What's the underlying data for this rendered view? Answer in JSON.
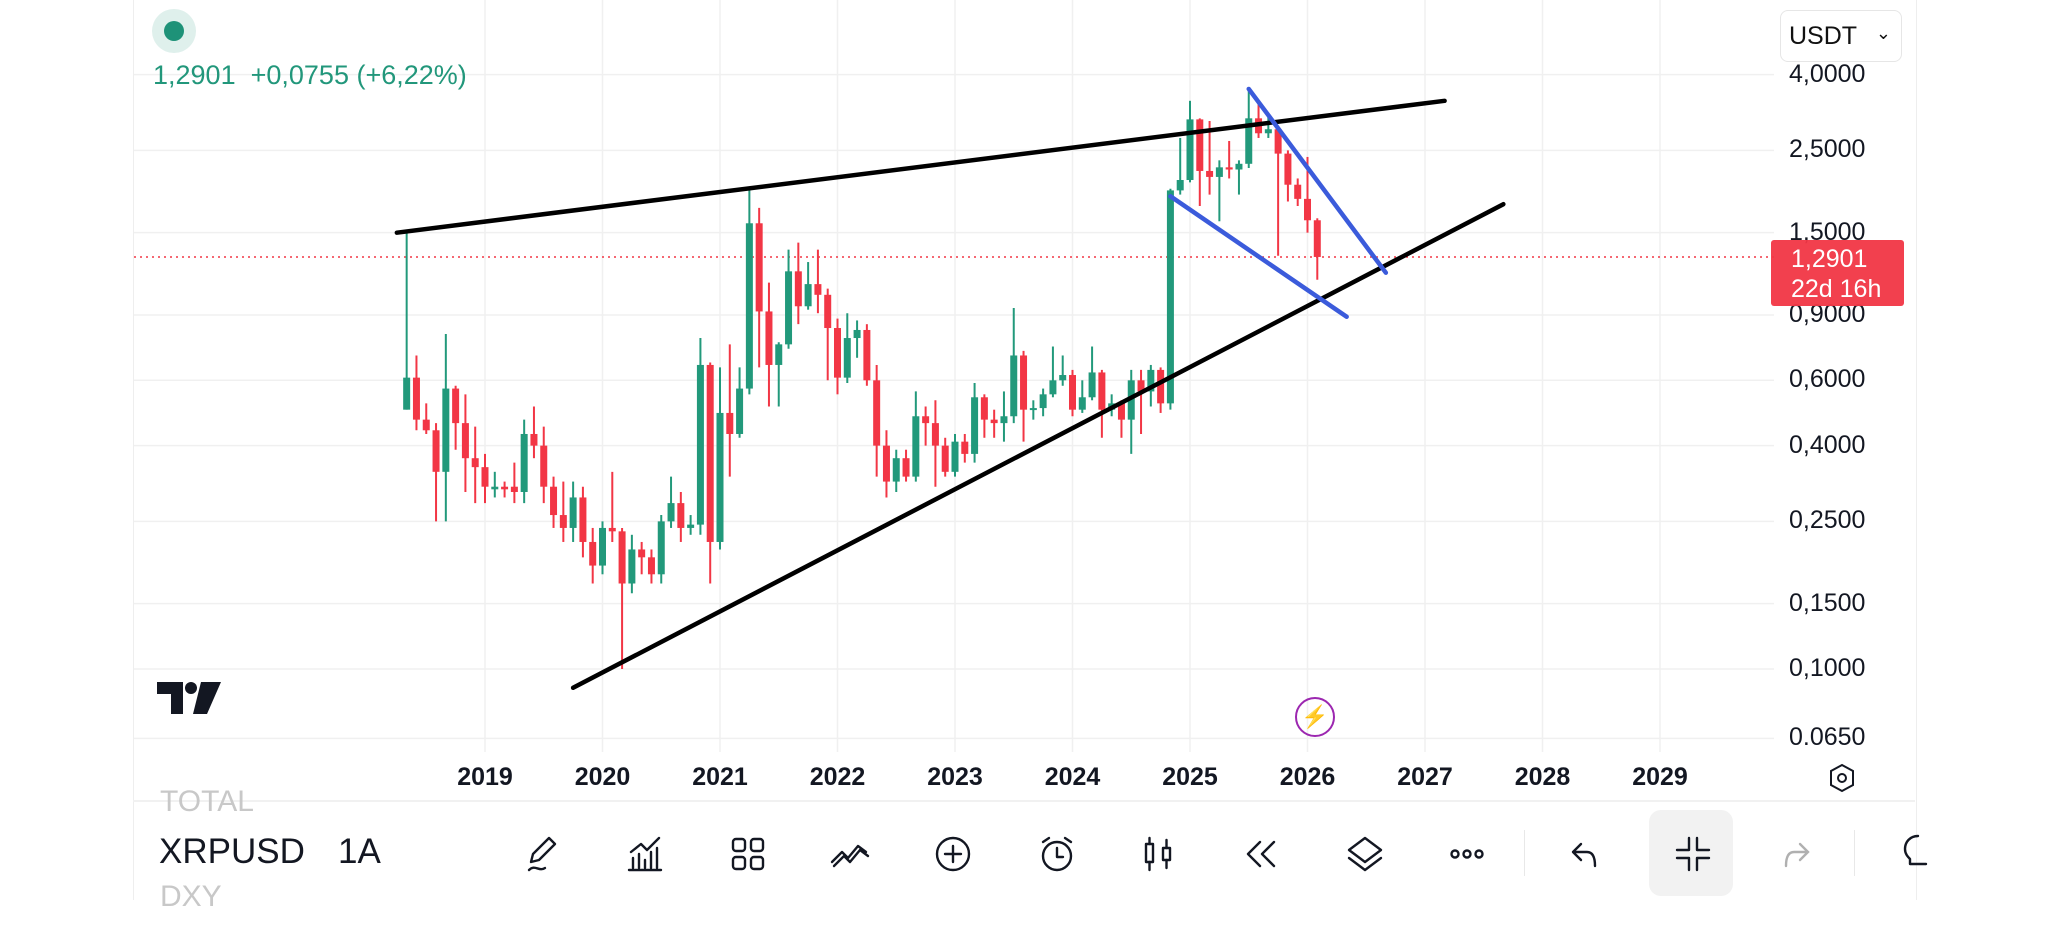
{
  "header": {
    "price": "1,2901",
    "change": "+0,0755",
    "change_pct": "(+6,22%)",
    "status_color": "#1e9278"
  },
  "currency_select": {
    "value": "USDT"
  },
  "last_price_label": {
    "price": "1,2901",
    "countdown": "22d 16h",
    "color": "#f23645"
  },
  "price_axis": {
    "ticks": [
      "4,0000",
      "2,5000",
      "1,5000",
      "0,9000",
      "0,6000",
      "0,4000",
      "0,2500",
      "0,1500",
      "0,1000",
      "0.0650"
    ],
    "tick_values": [
      4,
      2.5,
      1.5,
      0.9,
      0.6,
      0.4,
      0.25,
      0.15,
      0.1,
      0.065
    ],
    "scale": "log"
  },
  "time_axis": {
    "ticks": [
      "2019",
      "2020",
      "2021",
      "2022",
      "2023",
      "2024",
      "2025",
      "2026",
      "2027",
      "2028",
      "2029"
    ]
  },
  "bottom_bar": {
    "symbol": "XRPUSD",
    "interval": "1A",
    "watch_above": "TOTAL",
    "watch_below": "DXY"
  },
  "toolbar": [
    "pen-icon",
    "indicators-icon",
    "layout-icon",
    "drawing-tools-icon",
    "add-icon",
    "alert-icon",
    "candles-icon",
    "replay-icon",
    "layers-icon",
    "more-icon",
    "undo-icon",
    "collapse-icon",
    "redo-icon",
    "idea-icon"
  ],
  "chart_data": {
    "type": "candlestick",
    "symbol": "XRPUSD",
    "interval": "1M",
    "up_color": "#22997b",
    "down_color": "#f23645",
    "current_price": 1.2901,
    "ylim": [
      0.06,
      4.6
    ],
    "xlim": [
      "2018-01",
      "2029-12"
    ],
    "candles": [
      [
        "2018-05",
        0.5,
        1.5,
        0.5,
        0.61
      ],
      [
        "2018-06",
        0.61,
        0.7,
        0.44,
        0.47
      ],
      [
        "2018-07",
        0.47,
        0.52,
        0.43,
        0.44
      ],
      [
        "2018-08",
        0.44,
        0.46,
        0.25,
        0.34
      ],
      [
        "2018-09",
        0.34,
        0.8,
        0.25,
        0.57
      ],
      [
        "2018-10",
        0.57,
        0.58,
        0.39,
        0.46
      ],
      [
        "2018-11",
        0.46,
        0.55,
        0.3,
        0.37
      ],
      [
        "2018-12",
        0.37,
        0.45,
        0.28,
        0.35
      ],
      [
        "2019-01",
        0.35,
        0.38,
        0.28,
        0.31
      ],
      [
        "2019-02",
        0.305,
        0.34,
        0.29,
        0.31
      ],
      [
        "2019-03",
        0.31,
        0.32,
        0.29,
        0.305
      ],
      [
        "2019-04",
        0.31,
        0.36,
        0.28,
        0.3
      ],
      [
        "2019-05",
        0.3,
        0.47,
        0.28,
        0.43
      ],
      [
        "2019-06",
        0.43,
        0.51,
        0.37,
        0.4
      ],
      [
        "2019-07",
        0.4,
        0.45,
        0.28,
        0.31
      ],
      [
        "2019-08",
        0.31,
        0.33,
        0.24,
        0.26
      ],
      [
        "2019-09",
        0.26,
        0.32,
        0.22,
        0.24
      ],
      [
        "2019-10",
        0.24,
        0.32,
        0.22,
        0.29
      ],
      [
        "2019-11",
        0.29,
        0.31,
        0.2,
        0.22
      ],
      [
        "2019-12",
        0.22,
        0.24,
        0.17,
        0.19
      ],
      [
        "2020-01",
        0.19,
        0.25,
        0.18,
        0.24
      ],
      [
        "2020-02",
        0.24,
        0.34,
        0.22,
        0.235
      ],
      [
        "2020-03",
        0.235,
        0.24,
        0.1,
        0.17
      ],
      [
        "2020-04",
        0.17,
        0.23,
        0.16,
        0.21
      ],
      [
        "2020-05",
        0.21,
        0.22,
        0.18,
        0.2
      ],
      [
        "2020-06",
        0.2,
        0.21,
        0.17,
        0.18
      ],
      [
        "2020-07",
        0.18,
        0.26,
        0.17,
        0.25
      ],
      [
        "2020-08",
        0.25,
        0.33,
        0.24,
        0.28
      ],
      [
        "2020-09",
        0.28,
        0.3,
        0.22,
        0.24
      ],
      [
        "2020-10",
        0.24,
        0.26,
        0.23,
        0.245
      ],
      [
        "2020-11",
        0.245,
        0.78,
        0.23,
        0.66
      ],
      [
        "2020-12",
        0.66,
        0.67,
        0.17,
        0.22
      ],
      [
        "2021-01",
        0.22,
        0.65,
        0.21,
        0.49
      ],
      [
        "2021-02",
        0.49,
        0.75,
        0.33,
        0.43
      ],
      [
        "2021-03",
        0.43,
        0.65,
        0.42,
        0.57
      ],
      [
        "2021-04",
        0.57,
        1.96,
        0.55,
        1.59
      ],
      [
        "2021-05",
        1.59,
        1.75,
        0.65,
        0.92
      ],
      [
        "2021-06",
        0.92,
        1.1,
        0.51,
        0.66
      ],
      [
        "2021-07",
        0.66,
        0.76,
        0.51,
        0.75
      ],
      [
        "2021-08",
        0.75,
        1.35,
        0.73,
        1.18
      ],
      [
        "2021-09",
        1.18,
        1.41,
        0.85,
        0.95
      ],
      [
        "2021-10",
        0.95,
        1.25,
        0.93,
        1.09
      ],
      [
        "2021-11",
        1.09,
        1.35,
        0.91,
        1.02
      ],
      [
        "2021-12",
        1.02,
        1.06,
        0.6,
        0.83
      ],
      [
        "2022-01",
        0.83,
        0.88,
        0.55,
        0.61
      ],
      [
        "2022-02",
        0.61,
        0.91,
        0.59,
        0.78
      ],
      [
        "2022-03",
        0.78,
        0.87,
        0.69,
        0.82
      ],
      [
        "2022-04",
        0.82,
        0.85,
        0.58,
        0.6
      ],
      [
        "2022-05",
        0.6,
        0.66,
        0.33,
        0.4
      ],
      [
        "2022-06",
        0.4,
        0.44,
        0.29,
        0.32
      ],
      [
        "2022-07",
        0.32,
        0.39,
        0.3,
        0.37
      ],
      [
        "2022-08",
        0.37,
        0.39,
        0.32,
        0.33
      ],
      [
        "2022-09",
        0.33,
        0.56,
        0.32,
        0.48
      ],
      [
        "2022-10",
        0.48,
        0.51,
        0.4,
        0.46
      ],
      [
        "2022-11",
        0.46,
        0.53,
        0.31,
        0.4
      ],
      [
        "2022-12",
        0.4,
        0.42,
        0.33,
        0.34
      ],
      [
        "2023-01",
        0.34,
        0.43,
        0.33,
        0.41
      ],
      [
        "2023-02",
        0.41,
        0.43,
        0.36,
        0.38
      ],
      [
        "2023-03",
        0.38,
        0.59,
        0.36,
        0.54
      ],
      [
        "2023-04",
        0.54,
        0.55,
        0.42,
        0.47
      ],
      [
        "2023-05",
        0.47,
        0.5,
        0.42,
        0.46
      ],
      [
        "2023-06",
        0.46,
        0.56,
        0.41,
        0.48
      ],
      [
        "2023-07",
        0.48,
        0.94,
        0.46,
        0.7
      ],
      [
        "2023-08",
        0.7,
        0.72,
        0.41,
        0.5
      ],
      [
        "2023-09",
        0.5,
        0.53,
        0.47,
        0.505
      ],
      [
        "2023-10",
        0.505,
        0.57,
        0.48,
        0.55
      ],
      [
        "2023-11",
        0.55,
        0.74,
        0.54,
        0.6
      ],
      [
        "2023-12",
        0.6,
        0.7,
        0.58,
        0.62
      ],
      [
        "2024-01",
        0.62,
        0.64,
        0.48,
        0.5
      ],
      [
        "2024-02",
        0.5,
        0.6,
        0.49,
        0.54
      ],
      [
        "2024-03",
        0.54,
        0.74,
        0.53,
        0.63
      ],
      [
        "2024-04",
        0.63,
        0.64,
        0.42,
        0.5
      ],
      [
        "2024-05",
        0.5,
        0.55,
        0.48,
        0.52
      ],
      [
        "2024-06",
        0.52,
        0.53,
        0.42,
        0.47
      ],
      [
        "2024-07",
        0.47,
        0.64,
        0.38,
        0.6
      ],
      [
        "2024-08",
        0.6,
        0.64,
        0.43,
        0.56
      ],
      [
        "2024-09",
        0.56,
        0.66,
        0.51,
        0.64
      ],
      [
        "2024-10",
        0.64,
        0.65,
        0.49,
        0.52
      ],
      [
        "2024-11",
        0.52,
        1.97,
        0.5,
        1.95
      ],
      [
        "2024-12",
        1.95,
        2.7,
        1.9,
        2.08
      ],
      [
        "2025-01",
        2.08,
        3.4,
        2.05,
        3.03
      ],
      [
        "2025-02",
        3.03,
        3.05,
        1.77,
        2.2
      ],
      [
        "2025-03",
        2.2,
        3.0,
        1.9,
        2.12
      ],
      [
        "2025-04",
        2.12,
        2.35,
        1.61,
        2.25
      ],
      [
        "2025-05",
        2.25,
        2.65,
        2.1,
        2.22
      ],
      [
        "2025-06",
        2.22,
        2.35,
        1.9,
        2.3
      ],
      [
        "2025-07",
        2.3,
        3.66,
        2.24,
        3.05
      ],
      [
        "2025-08",
        3.05,
        3.35,
        2.7,
        2.78
      ],
      [
        "2025-09",
        2.78,
        3.1,
        2.7,
        2.85
      ],
      [
        "2025-10",
        2.85,
        2.88,
        1.3,
        2.45
      ],
      [
        "2025-11",
        2.45,
        2.5,
        1.82,
        2.02
      ],
      [
        "2025-12",
        2.02,
        2.1,
        1.77,
        1.85
      ],
      [
        "2026-01",
        1.85,
        2.4,
        1.5,
        1.62
      ],
      [
        "2026-02",
        1.62,
        1.64,
        1.12,
        1.2901
      ]
    ],
    "drawings": [
      {
        "kind": "trendline",
        "color": "#000000",
        "from": [
          "2018-04",
          1.5
        ],
        "to": [
          "2027-03",
          3.4
        ]
      },
      {
        "kind": "trendline",
        "color": "#000000",
        "from": [
          "2019-10",
          0.089
        ],
        "to": [
          "2027-09",
          1.79
        ]
      },
      {
        "kind": "trendline",
        "color": "#3b5bdb",
        "from": [
          "2025-07",
          3.66
        ],
        "to": [
          "2026-09",
          1.17
        ]
      },
      {
        "kind": "trendline",
        "color": "#3b5bdb",
        "from": [
          "2024-11",
          1.88
        ],
        "to": [
          "2026-05",
          0.89
        ]
      }
    ]
  }
}
